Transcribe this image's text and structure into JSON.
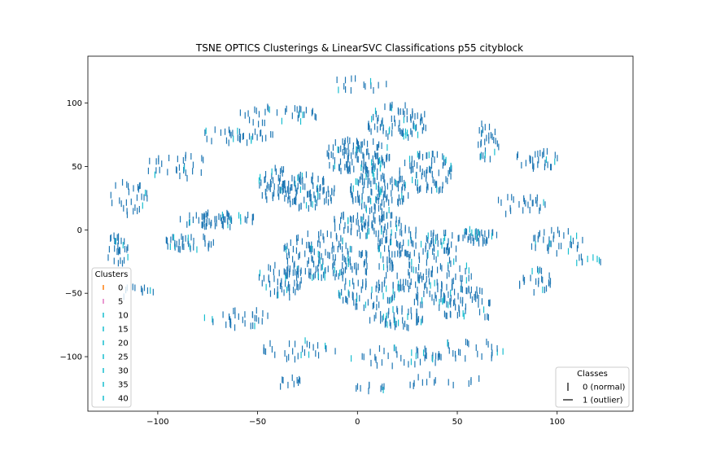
{
  "chart_data": {
    "type": "scatter",
    "title": "TSNE OPTICS Clusterings & LinearSVC Classifications p55 cityblock",
    "xlabel": "",
    "ylabel": "",
    "xlim": [
      -135,
      138
    ],
    "ylim": [
      -143,
      137
    ],
    "x_ticks": [
      -100,
      -50,
      0,
      50,
      100
    ],
    "x_tick_labels": [
      "−100",
      "−50",
      "0",
      "50",
      "100"
    ],
    "y_ticks": [
      -100,
      -50,
      0,
      50,
      100
    ],
    "y_tick_labels": [
      "−100",
      "−50",
      "0",
      "50",
      "100"
    ],
    "grid": false,
    "marker_color": "#1f77b4",
    "cluster_legend": {
      "title": "Clusters",
      "placement": "lower-left",
      "entries": [
        {
          "label": "0",
          "color": "#ff7f0e"
        },
        {
          "label": "5",
          "color": "#e377c2"
        },
        {
          "label": "10",
          "color": "#17becf"
        },
        {
          "label": "15",
          "color": "#17becf"
        },
        {
          "label": "20",
          "color": "#17becf"
        },
        {
          "label": "25",
          "color": "#17becf"
        },
        {
          "label": "30",
          "color": "#17becf"
        },
        {
          "label": "35",
          "color": "#17becf"
        },
        {
          "label": "40",
          "color": "#17becf"
        }
      ]
    },
    "class_legend": {
      "title": "Classes",
      "placement": "lower-right",
      "entries": [
        {
          "label": "0 (normal)",
          "marker": "|"
        },
        {
          "label": "1 (outlier)",
          "marker": "_"
        }
      ]
    },
    "groups": [
      {
        "cx": 0,
        "cy": 58,
        "rx": 18,
        "ry": 14,
        "n": 120,
        "shape": "blob"
      },
      {
        "cx": -25,
        "cy": 30,
        "rx": 14,
        "ry": 14,
        "n": 90,
        "shape": "blob"
      },
      {
        "cx": 10,
        "cy": 30,
        "rx": 16,
        "ry": 16,
        "n": 110,
        "shape": "blob"
      },
      {
        "cx": 20,
        "cy": 85,
        "rx": 16,
        "ry": 14,
        "n": 80,
        "shape": "blob"
      },
      {
        "cx": 35,
        "cy": 45,
        "rx": 14,
        "ry": 16,
        "n": 80,
        "shape": "blob"
      },
      {
        "cx": 5,
        "cy": 5,
        "rx": 18,
        "ry": 10,
        "n": 80,
        "shape": "blob"
      },
      {
        "cx": 30,
        "cy": -10,
        "rx": 22,
        "ry": 12,
        "n": 100,
        "shape": "blob"
      },
      {
        "cx": 60,
        "cy": -5,
        "rx": 10,
        "ry": 6,
        "n": 40,
        "shape": "blob"
      },
      {
        "cx": -20,
        "cy": -20,
        "rx": 18,
        "ry": 18,
        "n": 110,
        "shape": "blob"
      },
      {
        "cx": 5,
        "cy": -40,
        "rx": 18,
        "ry": 22,
        "n": 120,
        "shape": "blob"
      },
      {
        "cx": 40,
        "cy": -40,
        "rx": 18,
        "ry": 22,
        "n": 110,
        "shape": "blob"
      },
      {
        "cx": 55,
        "cy": -60,
        "rx": 14,
        "ry": 14,
        "n": 50,
        "shape": "blob"
      },
      {
        "cx": -38,
        "cy": -40,
        "rx": 12,
        "ry": 14,
        "n": 60,
        "shape": "blob"
      },
      {
        "cx": 20,
        "cy": -70,
        "rx": 14,
        "ry": 8,
        "n": 50,
        "shape": "blob"
      },
      {
        "cx": -40,
        "cy": 35,
        "rx": 10,
        "ry": 14,
        "n": 50,
        "shape": "blob"
      },
      {
        "cx": -70,
        "cy": 8,
        "rx": 20,
        "ry": 6,
        "n": 60,
        "shape": "blob"
      },
      {
        "cx": -85,
        "cy": -10,
        "rx": 16,
        "ry": 6,
        "n": 40,
        "shape": "blob"
      },
      {
        "cx": -120,
        "cy": -15,
        "rx": 6,
        "ry": 14,
        "n": 30,
        "shape": "blob"
      },
      {
        "cx": -115,
        "cy": 25,
        "rx": 10,
        "ry": 14,
        "n": 30,
        "shape": "blob"
      },
      {
        "cx": 65,
        "cy": 70,
        "rx": 6,
        "ry": 16,
        "n": 30,
        "shape": "blob"
      },
      {
        "cx": 90,
        "cy": 55,
        "rx": 12,
        "ry": 8,
        "n": 30,
        "shape": "blob"
      },
      {
        "cx": 100,
        "cy": -10,
        "rx": 14,
        "ry": 10,
        "n": 35,
        "shape": "blob"
      },
      {
        "cx": 90,
        "cy": -40,
        "rx": 10,
        "ry": 10,
        "n": 25,
        "shape": "blob"
      },
      {
        "cx": -60,
        "cy": 75,
        "rx": 18,
        "ry": 8,
        "n": 35,
        "shape": "blob"
      },
      {
        "cx": -40,
        "cy": 90,
        "rx": 20,
        "ry": 8,
        "n": 35,
        "shape": "blob"
      },
      {
        "cx": -90,
        "cy": 50,
        "rx": 16,
        "ry": 10,
        "n": 30,
        "shape": "blob"
      },
      {
        "cx": -60,
        "cy": -70,
        "rx": 18,
        "ry": 8,
        "n": 30,
        "shape": "blob"
      },
      {
        "cx": -30,
        "cy": -95,
        "rx": 20,
        "ry": 8,
        "n": 30,
        "shape": "blob"
      },
      {
        "cx": 20,
        "cy": -100,
        "rx": 25,
        "ry": 8,
        "n": 40,
        "shape": "blob"
      },
      {
        "cx": 55,
        "cy": -95,
        "rx": 20,
        "ry": 8,
        "n": 30,
        "shape": "blob"
      },
      {
        "cx": 80,
        "cy": 20,
        "rx": 16,
        "ry": 8,
        "n": 25,
        "shape": "blob"
      },
      {
        "cx": 0,
        "cy": 115,
        "rx": 15,
        "ry": 6,
        "n": 15,
        "shape": "blob"
      },
      {
        "cx": -35,
        "cy": -120,
        "rx": 10,
        "ry": 4,
        "n": 10,
        "shape": "blob"
      },
      {
        "cx": 5,
        "cy": -125,
        "rx": 10,
        "ry": 3,
        "n": 10,
        "shape": "blob"
      },
      {
        "cx": 40,
        "cy": -120,
        "rx": 25,
        "ry": 6,
        "n": 15,
        "shape": "blob"
      },
      {
        "cx": -110,
        "cy": -50,
        "rx": 8,
        "ry": 6,
        "n": 12,
        "shape": "blob"
      },
      {
        "cx": 115,
        "cy": -25,
        "rx": 8,
        "ry": 4,
        "n": 10,
        "shape": "blob"
      }
    ]
  }
}
